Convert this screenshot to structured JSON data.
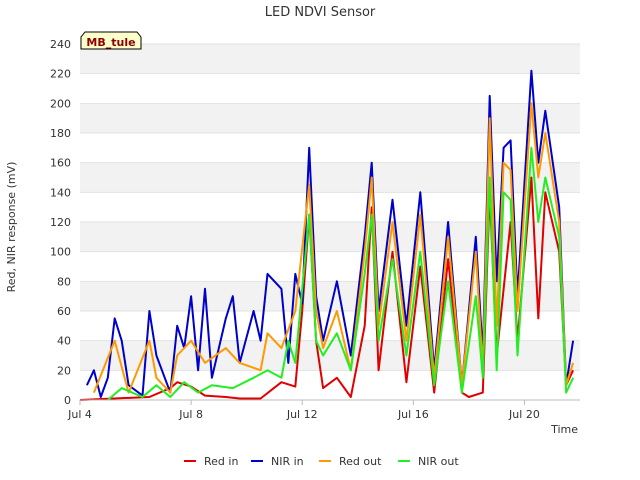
{
  "chart_data": {
    "type": "line",
    "title": "LED NDVI Sensor",
    "xlabel": "Time",
    "ylabel": "Red, NIR response (mV)",
    "site_label": "MB_tule",
    "xlim": [
      "2024-07-04",
      "2024-07-22"
    ],
    "ylim": [
      0,
      240
    ],
    "yticks": [
      0,
      20,
      40,
      60,
      80,
      100,
      120,
      140,
      160,
      180,
      200,
      220,
      240
    ],
    "xticks": [
      {
        "date": "2024-07-04",
        "label": "Jul 4"
      },
      {
        "date": "2024-07-08",
        "label": "Jul 8"
      },
      {
        "date": "2024-07-12",
        "label": "Jul 12"
      },
      {
        "date": "2024-07-16",
        "label": "Jul 16"
      },
      {
        "date": "2024-07-20",
        "label": "Jul 20"
      }
    ],
    "grid": "horizontal alternating bands",
    "legend_position": "bottom",
    "series": [
      {
        "name": "Red in",
        "color": "#e00000",
        "points": [
          [
            "2024-07-04T00:00",
            0
          ],
          [
            "2024-07-06T12:00",
            2
          ],
          [
            "2024-07-07T06:00",
            8
          ],
          [
            "2024-07-07T12:00",
            12
          ],
          [
            "2024-07-08T00:00",
            9
          ],
          [
            "2024-07-08T12:00",
            3
          ],
          [
            "2024-07-09T06:00",
            2
          ],
          [
            "2024-07-09T18:00",
            1
          ],
          [
            "2024-07-10T12:00",
            1
          ],
          [
            "2024-07-11T06:00",
            12
          ],
          [
            "2024-07-11T18:00",
            9
          ],
          [
            "2024-07-12T00:00",
            60
          ],
          [
            "2024-07-12T06:00",
            125
          ],
          [
            "2024-07-12T12:00",
            40
          ],
          [
            "2024-07-12T18:00",
            8
          ],
          [
            "2024-07-13T06:00",
            15
          ],
          [
            "2024-07-13T18:00",
            2
          ],
          [
            "2024-07-14T06:00",
            50
          ],
          [
            "2024-07-14T12:00",
            130
          ],
          [
            "2024-07-14T18:00",
            20
          ],
          [
            "2024-07-15T06:00",
            100
          ],
          [
            "2024-07-15T18:00",
            12
          ],
          [
            "2024-07-16T06:00",
            90
          ],
          [
            "2024-07-16T18:00",
            5
          ],
          [
            "2024-07-17T06:00",
            95
          ],
          [
            "2024-07-17T18:00",
            5
          ],
          [
            "2024-07-18T00:00",
            2
          ],
          [
            "2024-07-18T12:00",
            5
          ],
          [
            "2024-07-18T18:00",
            140
          ],
          [
            "2024-07-19T00:00",
            30
          ],
          [
            "2024-07-19T12:00",
            120
          ],
          [
            "2024-07-19T18:00",
            40
          ],
          [
            "2024-07-20T06:00",
            150
          ],
          [
            "2024-07-20T12:00",
            55
          ],
          [
            "2024-07-20T18:00",
            140
          ],
          [
            "2024-07-21T06:00",
            100
          ],
          [
            "2024-07-21T12:00",
            10
          ],
          [
            "2024-07-21T18:00",
            20
          ]
        ]
      },
      {
        "name": "NIR in",
        "color": "#0000cc",
        "points": [
          [
            "2024-07-04T06:00",
            10
          ],
          [
            "2024-07-04T12:00",
            20
          ],
          [
            "2024-07-04T18:00",
            2
          ],
          [
            "2024-07-05T00:00",
            15
          ],
          [
            "2024-07-05T06:00",
            55
          ],
          [
            "2024-07-05T12:00",
            40
          ],
          [
            "2024-07-05T18:00",
            10
          ],
          [
            "2024-07-06T06:00",
            3
          ],
          [
            "2024-07-06T12:00",
            60
          ],
          [
            "2024-07-06T18:00",
            30
          ],
          [
            "2024-07-07T06:00",
            5
          ],
          [
            "2024-07-07T12:00",
            50
          ],
          [
            "2024-07-07T18:00",
            35
          ],
          [
            "2024-07-08T00:00",
            70
          ],
          [
            "2024-07-08T06:00",
            20
          ],
          [
            "2024-07-08T12:00",
            75
          ],
          [
            "2024-07-08T18:00",
            15
          ],
          [
            "2024-07-09T06:00",
            55
          ],
          [
            "2024-07-09T12:00",
            70
          ],
          [
            "2024-07-09T18:00",
            25
          ],
          [
            "2024-07-10T06:00",
            60
          ],
          [
            "2024-07-10T12:00",
            40
          ],
          [
            "2024-07-10T18:00",
            85
          ],
          [
            "2024-07-11T06:00",
            75
          ],
          [
            "2024-07-11T12:00",
            25
          ],
          [
            "2024-07-11T18:00",
            85
          ],
          [
            "2024-07-12T00:00",
            65
          ],
          [
            "2024-07-12T06:00",
            170
          ],
          [
            "2024-07-12T12:00",
            70
          ],
          [
            "2024-07-12T18:00",
            40
          ],
          [
            "2024-07-13T06:00",
            80
          ],
          [
            "2024-07-13T18:00",
            30
          ],
          [
            "2024-07-14T06:00",
            110
          ],
          [
            "2024-07-14T12:00",
            160
          ],
          [
            "2024-07-14T18:00",
            60
          ],
          [
            "2024-07-15T06:00",
            135
          ],
          [
            "2024-07-15T18:00",
            50
          ],
          [
            "2024-07-16T06:00",
            140
          ],
          [
            "2024-07-16T18:00",
            20
          ],
          [
            "2024-07-17T06:00",
            120
          ],
          [
            "2024-07-17T18:00",
            10
          ],
          [
            "2024-07-18T06:00",
            110
          ],
          [
            "2024-07-18T12:00",
            30
          ],
          [
            "2024-07-18T18:00",
            205
          ],
          [
            "2024-07-19T00:00",
            80
          ],
          [
            "2024-07-19T06:00",
            170
          ],
          [
            "2024-07-19T12:00",
            175
          ],
          [
            "2024-07-19T18:00",
            70
          ],
          [
            "2024-07-20T06:00",
            222
          ],
          [
            "2024-07-20T12:00",
            160
          ],
          [
            "2024-07-20T18:00",
            195
          ],
          [
            "2024-07-21T06:00",
            130
          ],
          [
            "2024-07-21T12:00",
            10
          ],
          [
            "2024-07-21T18:00",
            40
          ]
        ]
      },
      {
        "name": "Red out",
        "color": "#ff9900",
        "points": [
          [
            "2024-07-04T12:00",
            5
          ],
          [
            "2024-07-05T06:00",
            40
          ],
          [
            "2024-07-05T18:00",
            5
          ],
          [
            "2024-07-06T12:00",
            40
          ],
          [
            "2024-07-06T18:00",
            15
          ],
          [
            "2024-07-07T06:00",
            5
          ],
          [
            "2024-07-07T12:00",
            30
          ],
          [
            "2024-07-08T00:00",
            40
          ],
          [
            "2024-07-08T12:00",
            25
          ],
          [
            "2024-07-09T06:00",
            35
          ],
          [
            "2024-07-09T18:00",
            25
          ],
          [
            "2024-07-10T12:00",
            20
          ],
          [
            "2024-07-10T18:00",
            45
          ],
          [
            "2024-07-11T06:00",
            35
          ],
          [
            "2024-07-11T18:00",
            60
          ],
          [
            "2024-07-12T06:00",
            145
          ],
          [
            "2024-07-12T12:00",
            60
          ],
          [
            "2024-07-12T18:00",
            35
          ],
          [
            "2024-07-13T06:00",
            60
          ],
          [
            "2024-07-13T18:00",
            20
          ],
          [
            "2024-07-14T06:00",
            100
          ],
          [
            "2024-07-14T12:00",
            150
          ],
          [
            "2024-07-14T18:00",
            50
          ],
          [
            "2024-07-15T06:00",
            120
          ],
          [
            "2024-07-15T18:00",
            40
          ],
          [
            "2024-07-16T06:00",
            125
          ],
          [
            "2024-07-16T18:00",
            15
          ],
          [
            "2024-07-17T06:00",
            110
          ],
          [
            "2024-07-17T18:00",
            10
          ],
          [
            "2024-07-18T06:00",
            100
          ],
          [
            "2024-07-18T12:00",
            20
          ],
          [
            "2024-07-18T18:00",
            190
          ],
          [
            "2024-07-19T00:00",
            50
          ],
          [
            "2024-07-19T06:00",
            160
          ],
          [
            "2024-07-19T12:00",
            155
          ],
          [
            "2024-07-19T18:00",
            60
          ],
          [
            "2024-07-20T06:00",
            200
          ],
          [
            "2024-07-20T12:00",
            150
          ],
          [
            "2024-07-20T18:00",
            180
          ],
          [
            "2024-07-21T06:00",
            120
          ],
          [
            "2024-07-21T12:00",
            10
          ],
          [
            "2024-07-21T18:00",
            25
          ]
        ]
      },
      {
        "name": "NIR out",
        "color": "#22ee22",
        "points": [
          [
            "2024-07-05T00:00",
            0
          ],
          [
            "2024-07-05T12:00",
            8
          ],
          [
            "2024-07-06T06:00",
            2
          ],
          [
            "2024-07-06T18:00",
            10
          ],
          [
            "2024-07-07T06:00",
            2
          ],
          [
            "2024-07-07T18:00",
            12
          ],
          [
            "2024-07-08T06:00",
            5
          ],
          [
            "2024-07-08T18:00",
            10
          ],
          [
            "2024-07-09T12:00",
            8
          ],
          [
            "2024-07-10T06:00",
            15
          ],
          [
            "2024-07-10T18:00",
            20
          ],
          [
            "2024-07-11T06:00",
            15
          ],
          [
            "2024-07-11T12:00",
            40
          ],
          [
            "2024-07-11T18:00",
            25
          ],
          [
            "2024-07-12T06:00",
            125
          ],
          [
            "2024-07-12T12:00",
            40
          ],
          [
            "2024-07-12T18:00",
            30
          ],
          [
            "2024-07-13T06:00",
            45
          ],
          [
            "2024-07-13T18:00",
            20
          ],
          [
            "2024-07-14T06:00",
            85
          ],
          [
            "2024-07-14T12:00",
            125
          ],
          [
            "2024-07-14T18:00",
            40
          ],
          [
            "2024-07-15T06:00",
            95
          ],
          [
            "2024-07-15T18:00",
            30
          ],
          [
            "2024-07-16T06:00",
            100
          ],
          [
            "2024-07-16T18:00",
            10
          ],
          [
            "2024-07-17T06:00",
            80
          ],
          [
            "2024-07-17T18:00",
            5
          ],
          [
            "2024-07-18T06:00",
            70
          ],
          [
            "2024-07-18T12:00",
            15
          ],
          [
            "2024-07-18T18:00",
            150
          ],
          [
            "2024-07-19T00:00",
            20
          ],
          [
            "2024-07-19T06:00",
            140
          ],
          [
            "2024-07-19T12:00",
            135
          ],
          [
            "2024-07-19T18:00",
            30
          ],
          [
            "2024-07-20T06:00",
            170
          ],
          [
            "2024-07-20T12:00",
            120
          ],
          [
            "2024-07-20T18:00",
            150
          ],
          [
            "2024-07-21T06:00",
            110
          ],
          [
            "2024-07-21T12:00",
            5
          ],
          [
            "2024-07-21T18:00",
            15
          ]
        ]
      }
    ]
  }
}
